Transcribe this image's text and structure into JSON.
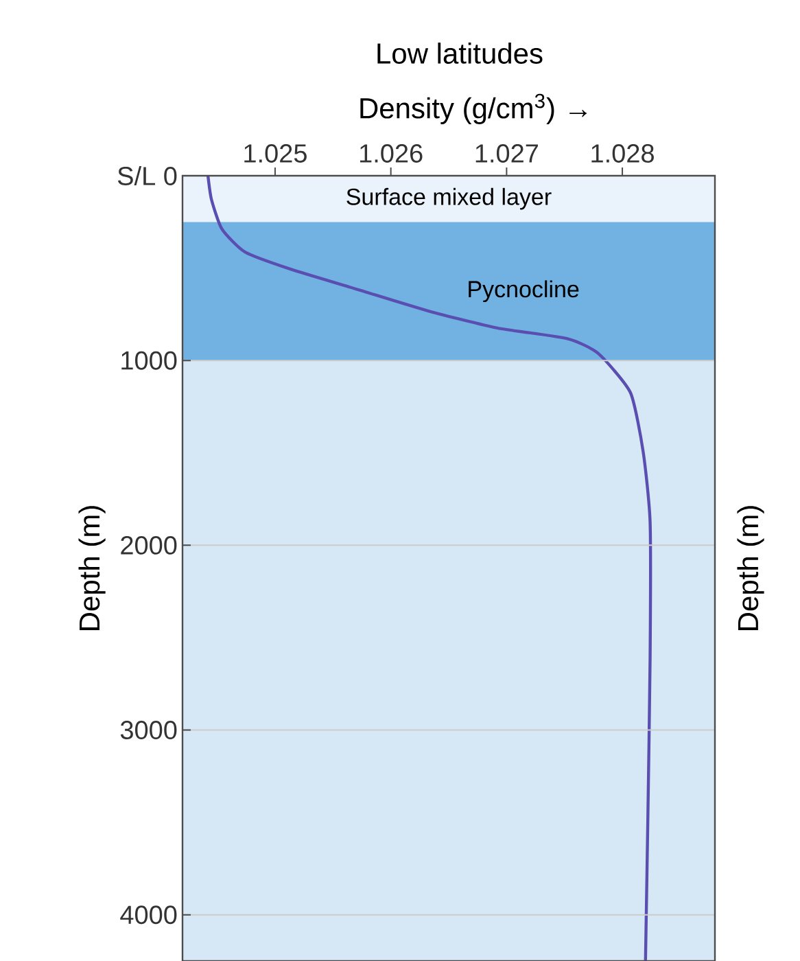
{
  "chart_data": {
    "type": "line",
    "title": "Low latitudes",
    "xlabel": "Density (g/cm$^{3}$) →",
    "ylabel": "Depth (m)",
    "annotations": [
      "Depth (m)"
    ],
    "x": [
      1.02442,
      1.02445,
      1.02454,
      1.02474,
      1.02513,
      1.02573,
      1.02633,
      1.02692,
      1.02752,
      1.02779,
      1.02807,
      1.02818,
      1.02824,
      1.02824,
      1.02822,
      1.0282
    ],
    "series": [
      {
        "color": "#5a4fb0",
        "values": [
          0,
          128,
          288,
          413,
          505,
          619,
          733,
          824,
          881,
          961,
          1174,
          1494,
          1876,
          2611,
          3498,
          4250
        ]
      }
    ],
    "xlim": [
      1.0242,
      1.0288
    ],
    "xticks": [
      1.025,
      1.026,
      1.027,
      1.028
    ],
    "ylim": [
      4250,
      0
    ],
    "yticks": [
      {
        "value": 0,
        "label": "S/L   0"
      },
      1000,
      2000,
      3000,
      4000
    ],
    "grid": "y",
    "bands": [
      {
        "axis": "y",
        "from": 0,
        "to": 250,
        "label": "Surface mixed layer",
        "color": "#eaf3fb"
      },
      {
        "axis": "y",
        "from": 250,
        "to": 1000,
        "label": "Pycnocline",
        "color": "#72b2e2"
      },
      {
        "axis": "y",
        "from": 1000,
        "to": 4250,
        "color": "#d6e8f6"
      }
    ]
  }
}
